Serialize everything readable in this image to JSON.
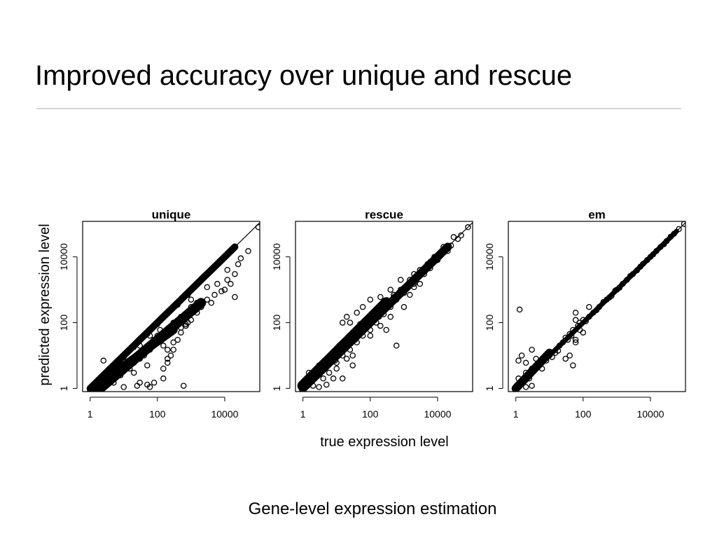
{
  "slide": {
    "title": "Improved accuracy over unique and rescue",
    "caption": "Gene-level expression estimation"
  },
  "chart_data": {
    "type": "scatter",
    "layout": "three panels in a row with shared axes",
    "xlabel": "true expression level",
    "ylabel": "predicted expression level",
    "x_scale": "log",
    "y_scale": "log",
    "xlim": [
      0.6,
      110000
    ],
    "ylim": [
      0.8,
      120000
    ],
    "x_ticks": [
      {
        "value": 1,
        "label": "1"
      },
      {
        "value": 100,
        "label": "100"
      },
      {
        "value": 10000,
        "label": "10000"
      }
    ],
    "y_ticks": [
      {
        "value": 1,
        "label": "1"
      },
      {
        "value": 100,
        "label": "100"
      },
      {
        "value": 10000,
        "label": "10000"
      }
    ],
    "reference_line": "y = x",
    "marker": "open circle",
    "grid": false,
    "panels": [
      {
        "title": "unique",
        "points": [
          [
            2.5,
            7
          ],
          [
            10,
            1.1
          ],
          [
            3,
            1.2
          ],
          [
            5,
            1.5
          ],
          [
            8,
            2.5
          ],
          [
            15,
            4
          ],
          [
            20,
            6
          ],
          [
            30,
            8
          ],
          [
            40,
            12
          ],
          [
            60,
            20
          ],
          [
            80,
            30
          ],
          [
            100,
            40
          ],
          [
            120,
            60
          ],
          [
            150,
            20
          ],
          [
            200,
            8
          ],
          [
            300,
            25
          ],
          [
            500,
            50
          ],
          [
            700,
            80
          ],
          [
            1000,
            120
          ],
          [
            1500,
            200
          ],
          [
            2000,
            300
          ],
          [
            3000,
            500
          ],
          [
            5000,
            700
          ],
          [
            8000,
            900
          ],
          [
            10000,
            1000
          ],
          [
            12000,
            2000
          ],
          [
            15000,
            1500
          ],
          [
            20000,
            600
          ],
          [
            20000,
            3000
          ],
          [
            25000,
            6000
          ],
          [
            30000,
            9000
          ],
          [
            50000,
            15000
          ],
          [
            100000,
            80000
          ],
          [
            600,
            1.2
          ],
          [
            150,
            4
          ],
          [
            200,
            6
          ],
          [
            250,
            10
          ],
          [
            300,
            15
          ],
          [
            400,
            30
          ],
          [
            500,
            70
          ],
          [
            700,
            90
          ],
          [
            200,
            200
          ],
          [
            2000,
            2000
          ],
          [
            5000,
            5000
          ],
          [
            8000,
            8000
          ],
          [
            1000,
            500
          ],
          [
            3000,
            1200
          ],
          [
            20,
            3
          ],
          [
            40,
            10
          ],
          [
            60,
            15
          ],
          [
            25,
            1.2
          ],
          [
            30,
            1.5
          ],
          [
            50,
            1.3
          ],
          [
            60,
            1.1
          ],
          [
            80,
            1.5
          ],
          [
            150,
            2
          ],
          [
            50,
            5
          ],
          [
            200,
            15
          ],
          [
            800,
            100
          ],
          [
            1000,
            300
          ],
          [
            1500,
            400
          ],
          [
            4000,
            400
          ],
          [
            6000,
            1500
          ],
          [
            12000,
            4000
          ],
          [
            300,
            100
          ],
          [
            500,
            150
          ],
          [
            30,
            20
          ],
          [
            60,
            40
          ],
          [
            100,
            90
          ],
          [
            400,
            350
          ],
          [
            800,
            700
          ],
          [
            50,
            45
          ],
          [
            10,
            9
          ],
          [
            5,
            4
          ],
          [
            20,
            18
          ],
          [
            3,
            2
          ]
        ]
      },
      {
        "title": "rescue",
        "points": [
          [
            1.2,
            1.5
          ],
          [
            1.5,
            3
          ],
          [
            2,
            1.2
          ],
          [
            3,
            5
          ],
          [
            4,
            2
          ],
          [
            5,
            8
          ],
          [
            6,
            3
          ],
          [
            8,
            12
          ],
          [
            10,
            6
          ],
          [
            12,
            20
          ],
          [
            15,
            10
          ],
          [
            20,
            30
          ],
          [
            25,
            15
          ],
          [
            30,
            50
          ],
          [
            40,
            25
          ],
          [
            50,
            80
          ],
          [
            60,
            40
          ],
          [
            80,
            110
          ],
          [
            100,
            60
          ],
          [
            120,
            160
          ],
          [
            150,
            100
          ],
          [
            200,
            250
          ],
          [
            250,
            180
          ],
          [
            300,
            400
          ],
          [
            400,
            300
          ],
          [
            500,
            700
          ],
          [
            600,
            500
          ],
          [
            800,
            1000
          ],
          [
            1000,
            800
          ],
          [
            1500,
            2000
          ],
          [
            2000,
            1500
          ],
          [
            3000,
            4000
          ],
          [
            4000,
            3000
          ],
          [
            5000,
            6000
          ],
          [
            6000,
            4500
          ],
          [
            8000,
            10000
          ],
          [
            10000,
            8000
          ],
          [
            15000,
            20000
          ],
          [
            20000,
            15000
          ],
          [
            30000,
            40000
          ],
          [
            80000,
            80000
          ],
          [
            20,
            150
          ],
          [
            15,
            100
          ],
          [
            25,
            100
          ],
          [
            40,
            200
          ],
          [
            50,
            90
          ],
          [
            60,
            300
          ],
          [
            100,
            500
          ],
          [
            200,
            600
          ],
          [
            400,
            1000
          ],
          [
            600,
            600
          ],
          [
            800,
            2000
          ],
          [
            1000,
            300
          ],
          [
            400,
            150
          ],
          [
            600,
            20
          ],
          [
            1500,
            700
          ],
          [
            2000,
            1200
          ],
          [
            3000,
            1500
          ],
          [
            500,
            600
          ],
          [
            300,
            60
          ],
          [
            30,
            10
          ],
          [
            20,
            8
          ],
          [
            30,
            5
          ],
          [
            15,
            2
          ],
          [
            10,
            4
          ],
          [
            3,
            1.1
          ],
          [
            5,
            1.3
          ],
          [
            8,
            2
          ],
          [
            100,
            40
          ],
          [
            200,
            80
          ],
          [
            2000,
            3000
          ],
          [
            6000,
            7000
          ],
          [
            12000,
            11000
          ],
          [
            25000,
            22000
          ],
          [
            40000,
            35000
          ],
          [
            50000,
            45000
          ],
          [
            7,
            10
          ],
          [
            9,
            7
          ],
          [
            11,
            14
          ],
          [
            35,
            30
          ],
          [
            45,
            55
          ],
          [
            70,
            65
          ],
          [
            90,
            85
          ],
          [
            150,
            170
          ],
          [
            180,
            150
          ],
          [
            250,
            230
          ]
        ]
      },
      {
        "title": "em",
        "points": [
          [
            1.3,
            250
          ],
          [
            1.1,
            1.2
          ],
          [
            1.2,
            2
          ],
          [
            1.5,
            1.5
          ],
          [
            2,
            3
          ],
          [
            2.5,
            2
          ],
          [
            3,
            4
          ],
          [
            1.2,
            7
          ],
          [
            1.5,
            10
          ],
          [
            2,
            6
          ],
          [
            3,
            15
          ],
          [
            4,
            8
          ],
          [
            5,
            5
          ],
          [
            3,
            1.2
          ],
          [
            8,
            7
          ],
          [
            10,
            10
          ],
          [
            15,
            12
          ],
          [
            20,
            20
          ],
          [
            25,
            25
          ],
          [
            30,
            35
          ],
          [
            40,
            45
          ],
          [
            50,
            60
          ],
          [
            30,
            8
          ],
          [
            40,
            10
          ],
          [
            60,
            200
          ],
          [
            50,
            5
          ],
          [
            60,
            120
          ],
          [
            70,
            80
          ],
          [
            80,
            100
          ],
          [
            100,
            120
          ],
          [
            120,
            110
          ],
          [
            150,
            150
          ],
          [
            200,
            200
          ],
          [
            300,
            300
          ],
          [
            500,
            500
          ],
          [
            700,
            650
          ],
          [
            1000,
            1000
          ],
          [
            1500,
            1500
          ],
          [
            2000,
            2000
          ],
          [
            3000,
            3000
          ],
          [
            5000,
            5000
          ],
          [
            8000,
            8000
          ],
          [
            10000,
            10000
          ],
          [
            15000,
            15000
          ],
          [
            20000,
            20000
          ],
          [
            30000,
            30000
          ],
          [
            50000,
            50000
          ],
          [
            100000,
            100000
          ],
          [
            150,
            300
          ],
          [
            100,
            50
          ],
          [
            60,
            25
          ],
          [
            60,
            30
          ],
          [
            80,
            60
          ],
          [
            2,
            1.1
          ],
          [
            1.3,
            1.3
          ],
          [
            6,
            4
          ],
          [
            12,
            9
          ],
          [
            18,
            14
          ],
          [
            35,
            30
          ],
          [
            45,
            40
          ],
          [
            250,
            240
          ],
          [
            400,
            420
          ],
          [
            600,
            580
          ],
          [
            900,
            950
          ],
          [
            1200,
            1150
          ],
          [
            2500,
            2600
          ],
          [
            4000,
            3900
          ],
          [
            6000,
            6100
          ],
          [
            12000,
            11800
          ],
          [
            25000,
            24000
          ],
          [
            40000,
            41000
          ],
          [
            70000,
            70000
          ]
        ]
      }
    ]
  }
}
